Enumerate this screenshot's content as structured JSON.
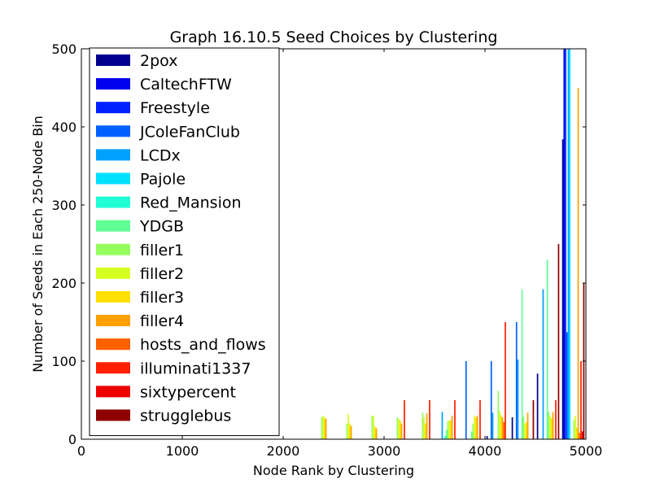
{
  "chart_data": {
    "type": "bar",
    "title": "Graph 16.10.5 Seed Choices by Clustering",
    "xlabel": "Node Rank by Clustering",
    "ylabel": "Number of Seeds in Each 250-Node Bin",
    "xlim": [
      0,
      5000
    ],
    "ylim": [
      0,
      500
    ],
    "xticks": [
      0,
      1000,
      2000,
      3000,
      4000,
      5000
    ],
    "yticks": [
      0,
      100,
      200,
      300,
      400,
      500
    ],
    "x_tick_labels": [
      "0",
      "1000",
      "2000",
      "3000",
      "4000",
      "5000"
    ],
    "y_tick_labels": [
      "0",
      "100",
      "200",
      "300",
      "400",
      "500"
    ],
    "bin_width": 250,
    "bins": [
      0,
      250,
      500,
      750,
      1000,
      1250,
      1500,
      1750,
      2000,
      2250,
      2500,
      2750,
      3000,
      3250,
      3500,
      3750,
      4000,
      4250,
      4500,
      4750
    ],
    "grid": false,
    "legend_position": "upper-left",
    "series": [
      {
        "name": "2pox",
        "color": "#00008f",
        "values": [
          0,
          0,
          0,
          0,
          0,
          0,
          0,
          0,
          0,
          0,
          0,
          0,
          0,
          0,
          0,
          0,
          4,
          28,
          84,
          384
        ]
      },
      {
        "name": "CaltechFTW",
        "color": "#0000ee",
        "values": [
          0,
          0,
          0,
          0,
          0,
          0,
          0,
          0,
          0,
          0,
          0,
          0,
          0,
          0,
          0,
          0,
          0,
          0,
          0,
          500
        ]
      },
      {
        "name": "Freestyle",
        "color": "#0020ff",
        "values": [
          0,
          0,
          0,
          0,
          0,
          0,
          0,
          0,
          0,
          0,
          0,
          0,
          0,
          0,
          0,
          0,
          0,
          0,
          0,
          500
        ]
      },
      {
        "name": "JColeFanClub",
        "color": "#0060ff",
        "values": [
          0,
          0,
          0,
          0,
          0,
          0,
          0,
          0,
          0,
          0,
          0,
          0,
          0,
          0,
          0,
          100,
          100,
          150,
          0,
          137
        ]
      },
      {
        "name": "LCDx",
        "color": "#00a0ff",
        "values": [
          0,
          0,
          0,
          0,
          0,
          0,
          0,
          0,
          0,
          0,
          0,
          0,
          0,
          0,
          35,
          0,
          34,
          102,
          192,
          500
        ]
      },
      {
        "name": "Pajole",
        "color": "#00e0ff",
        "values": [
          0,
          0,
          0,
          0,
          0,
          0,
          0,
          0,
          0,
          0,
          0,
          0,
          0,
          0,
          0,
          0,
          0,
          0,
          0,
          500
        ]
      },
      {
        "name": "Red_Mansion",
        "color": "#20ffd6",
        "values": [
          0,
          0,
          0,
          0,
          0,
          0,
          0,
          0,
          0,
          0,
          0,
          0,
          0,
          0,
          4,
          0,
          0,
          0,
          0,
          0
        ]
      },
      {
        "name": "YDGB",
        "color": "#60ff96",
        "values": [
          0,
          0,
          0,
          0,
          0,
          0,
          0,
          0,
          0,
          0,
          0,
          0,
          0,
          0,
          12,
          10,
          0,
          192,
          230,
          0
        ]
      },
      {
        "name": "filler1",
        "color": "#96ff60",
        "values": [
          0,
          0,
          0,
          0,
          0,
          0,
          0,
          0,
          0,
          28,
          20,
          30,
          28,
          34,
          23,
          20,
          62,
          29,
          35,
          25
        ]
      },
      {
        "name": "filler2",
        "color": "#d6ff20",
        "values": [
          0,
          0,
          0,
          0,
          0,
          0,
          0,
          0,
          0,
          30,
          32,
          30,
          26,
          28,
          24,
          30,
          36,
          20,
          30,
          30
        ]
      },
      {
        "name": "filler3",
        "color": "#ffe000",
        "values": [
          0,
          0,
          0,
          0,
          0,
          0,
          0,
          0,
          0,
          28,
          20,
          16,
          24,
          20,
          24,
          28,
          31,
          22,
          27,
          15
        ]
      },
      {
        "name": "filler4",
        "color": "#ffa000",
        "values": [
          0,
          0,
          0,
          0,
          0,
          0,
          0,
          0,
          0,
          26,
          17,
          14,
          20,
          33,
          30,
          30,
          28,
          34,
          35,
          450
        ]
      },
      {
        "name": "hosts_and_flows",
        "color": "#ff6000",
        "values": [
          0,
          0,
          0,
          0,
          0,
          0,
          0,
          0,
          0,
          0,
          0,
          0,
          0,
          0,
          0,
          0,
          22,
          0,
          0,
          8
        ]
      },
      {
        "name": "illuminati1337",
        "color": "#ff2000",
        "values": [
          0,
          0,
          0,
          0,
          0,
          0,
          0,
          0,
          0,
          0,
          0,
          0,
          50,
          50,
          50,
          50,
          150,
          0,
          50,
          100
        ]
      },
      {
        "name": "sixtypercent",
        "color": "#ee0000",
        "values": [
          0,
          0,
          0,
          0,
          0,
          0,
          0,
          0,
          0,
          0,
          0,
          0,
          0,
          0,
          0,
          0,
          0,
          0,
          0,
          10
        ]
      },
      {
        "name": "strugglebus",
        "color": "#8f0000",
        "values": [
          0,
          0,
          0,
          0,
          0,
          0,
          0,
          0,
          0,
          0,
          0,
          0,
          0,
          0,
          0,
          0,
          0,
          50,
          250,
          200
        ]
      }
    ]
  }
}
